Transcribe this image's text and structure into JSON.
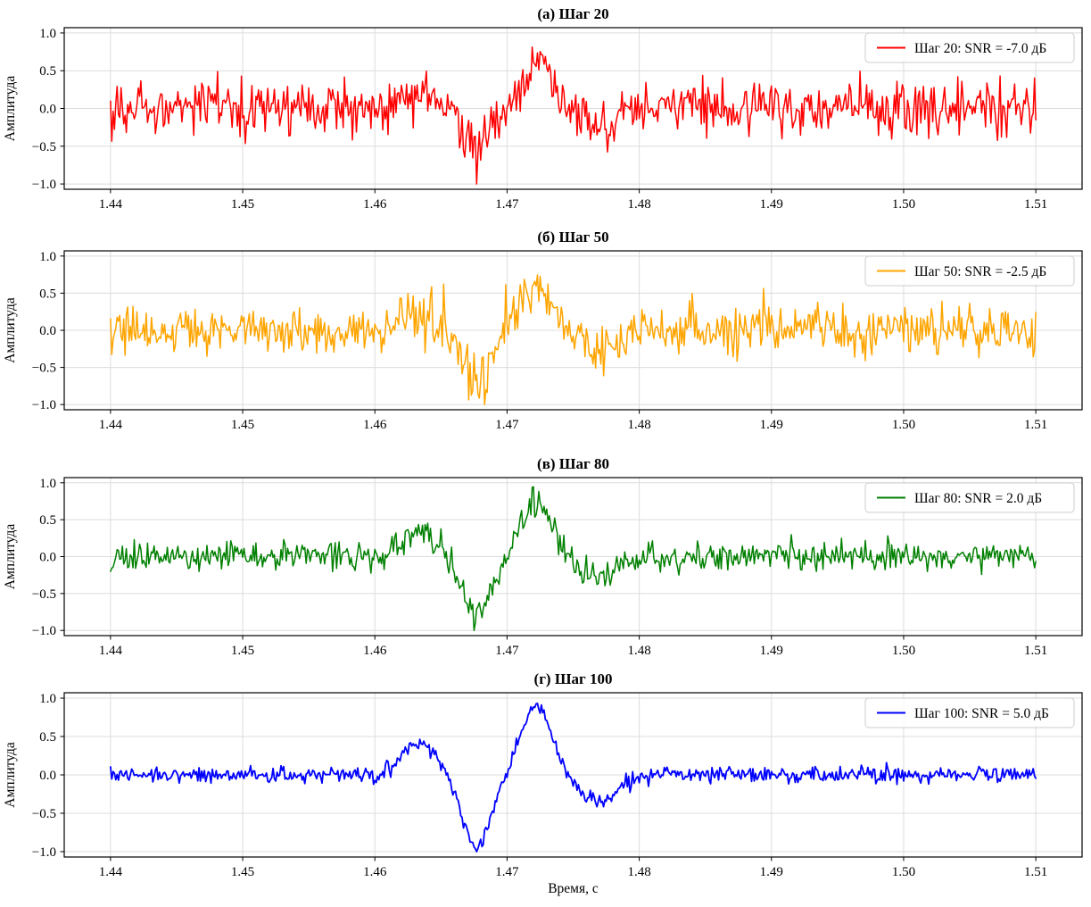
{
  "figure": {
    "kind": "4-panel signal denoising progression plot",
    "xlabel": "Время, с",
    "ylabel": "Амплитуда",
    "background": "#ffffff",
    "grid_color": "#dcdcdc",
    "spine_color": "#000000",
    "legend_border_color": "#cccccc",
    "legend_fill": "#ffffff"
  },
  "chart_data": {
    "type": "line",
    "layout": "4 vertically stacked panels, identical x axis on each, grid on, legend upper-right in each panel",
    "x_range": [
      1.44,
      1.51
    ],
    "xlim": [
      1.4365,
      1.5135
    ],
    "ylim": [
      -1.07,
      1.07
    ],
    "xticks": [
      1.44,
      1.45,
      1.46,
      1.47,
      1.48,
      1.49,
      1.5,
      1.51
    ],
    "yticks": [
      1.0,
      0.5,
      0.0,
      -0.5,
      -1.0
    ],
    "xlabel": "Время, с",
    "ylabel": "Амплитуда",
    "n_points": 701,
    "signal_model": {
      "description": "Same underlying wavelet in every panel (small positive lobe ~+0.42 at t=1.4633, main trough ~-1.0 at t=1.4677, main peak ~+0.93 at t=1.4722, small trough ~-0.36 at t=1.4769, flat elsewhere). Additive white gaussian noise whose level decreases with diffusion step; each trace is normalized to max |amplitude| = 1.",
      "wavelet_components": [
        {
          "amp": 0.42,
          "center": 1.4633,
          "sigma": 0.0018
        },
        {
          "amp": -1.0,
          "center": 1.4677,
          "sigma": 0.0015
        },
        {
          "amp": 0.93,
          "center": 1.4722,
          "sigma": 0.0016
        },
        {
          "amp": -0.36,
          "center": 1.4769,
          "sigma": 0.002
        }
      ]
    },
    "panels": [
      {
        "id": "a",
        "title": "(а) Шаг 20",
        "legend": "Шаг 20: SNR = -7.0 дБ",
        "step": 20,
        "snr_db": -7.0,
        "color": "#ff0000",
        "noise_std": 0.33,
        "seed": 7,
        "linewidth": 1.5
      },
      {
        "id": "b",
        "title": "(б) Шаг 50",
        "legend": "Шаг 50: SNR = -2.5 дБ",
        "step": 50,
        "snr_db": -2.5,
        "color": "#ffa500",
        "noise_std": 0.24,
        "seed": 13,
        "linewidth": 1.5
      },
      {
        "id": "c",
        "title": "(в) Шаг 80",
        "legend": "Шаг 80: SNR = 2.0 дБ",
        "step": 80,
        "snr_db": 2.0,
        "color": "#008000",
        "noise_std": 0.125,
        "seed": 21,
        "linewidth": 1.5
      },
      {
        "id": "d",
        "title": "(г) Шаг 100",
        "legend": "Шаг 100: SNR = 5.0 дБ",
        "step": 100,
        "snr_db": 5.0,
        "color": "#0000ff",
        "noise_std": 0.05,
        "seed": 42,
        "linewidth": 1.8
      }
    ]
  }
}
